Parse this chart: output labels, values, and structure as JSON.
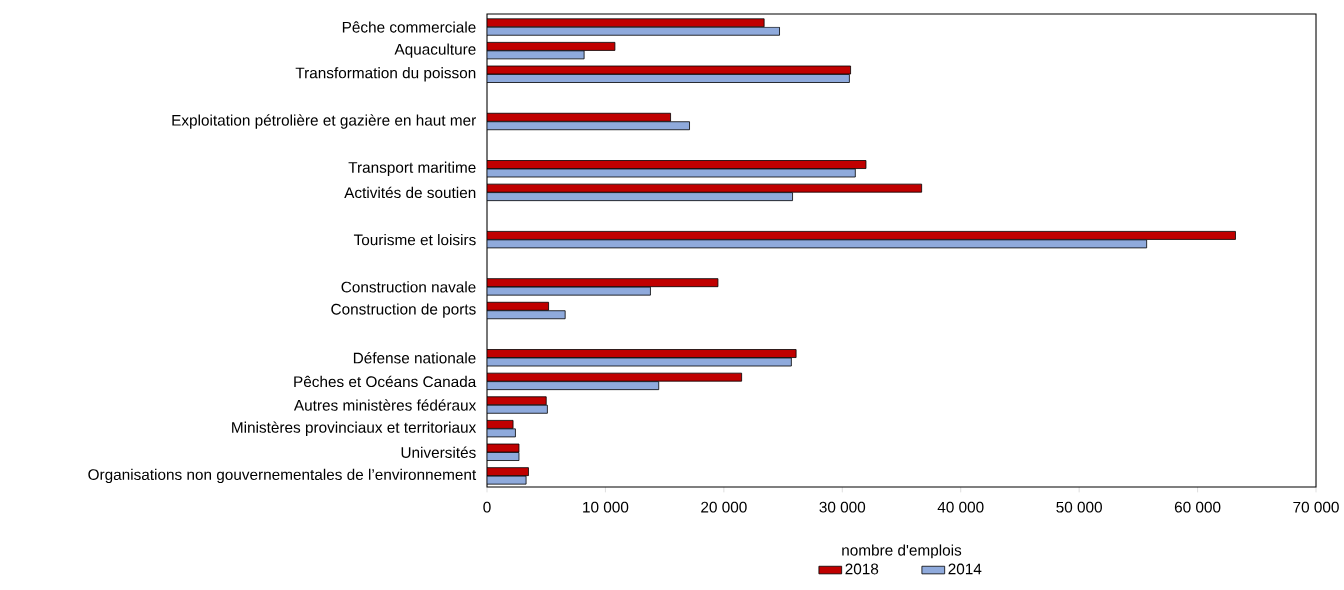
{
  "chart_data": {
    "type": "bar",
    "orientation": "horizontal",
    "categories": [
      "Pêche commerciale",
      "Aquaculture",
      "Transformation du poisson",
      null,
      "Exploitation pétrolière et gazière en haut mer",
      null,
      "Transport maritime",
      "Activités de soutien",
      null,
      "Tourisme et loisirs",
      null,
      "Construction navale",
      "Construction de ports",
      null,
      "Défense nationale",
      "Pêches et Océans Canada",
      "Autres ministères fédéraux",
      "Ministères provinciaux et territoriaux",
      "Universités",
      "Organisations non gouvernementales de l’environnement"
    ],
    "series": [
      {
        "name": "2018",
        "color": "#c00000",
        "values": [
          23400,
          10800,
          30700,
          null,
          15500,
          null,
          32000,
          36700,
          null,
          63200,
          null,
          19500,
          5200,
          null,
          26100,
          21500,
          5000,
          2200,
          2700,
          3500
        ]
      },
      {
        "name": "2014",
        "color": "#8faadc",
        "values": [
          24700,
          8200,
          30600,
          null,
          17100,
          null,
          31100,
          25800,
          null,
          55700,
          null,
          13800,
          6600,
          null,
          25700,
          14500,
          5100,
          2400,
          2700,
          3300
        ]
      }
    ],
    "xlabel": "nombre d'emplois",
    "xlim": [
      0,
      70000
    ],
    "xticks": [
      0,
      {
        "value": 10000,
        "label": "10 000"
      },
      {
        "value": 20000,
        "label": "20 000"
      },
      {
        "value": 30000,
        "label": "30 000"
      },
      {
        "value": 40000,
        "label": "40 000"
      },
      {
        "value": 50000,
        "label": "50 000"
      },
      {
        "value": 60000,
        "label": "60 000"
      },
      {
        "value": 70000,
        "label": "70 000"
      }
    ],
    "grid": false,
    "legend": "bottom"
  }
}
